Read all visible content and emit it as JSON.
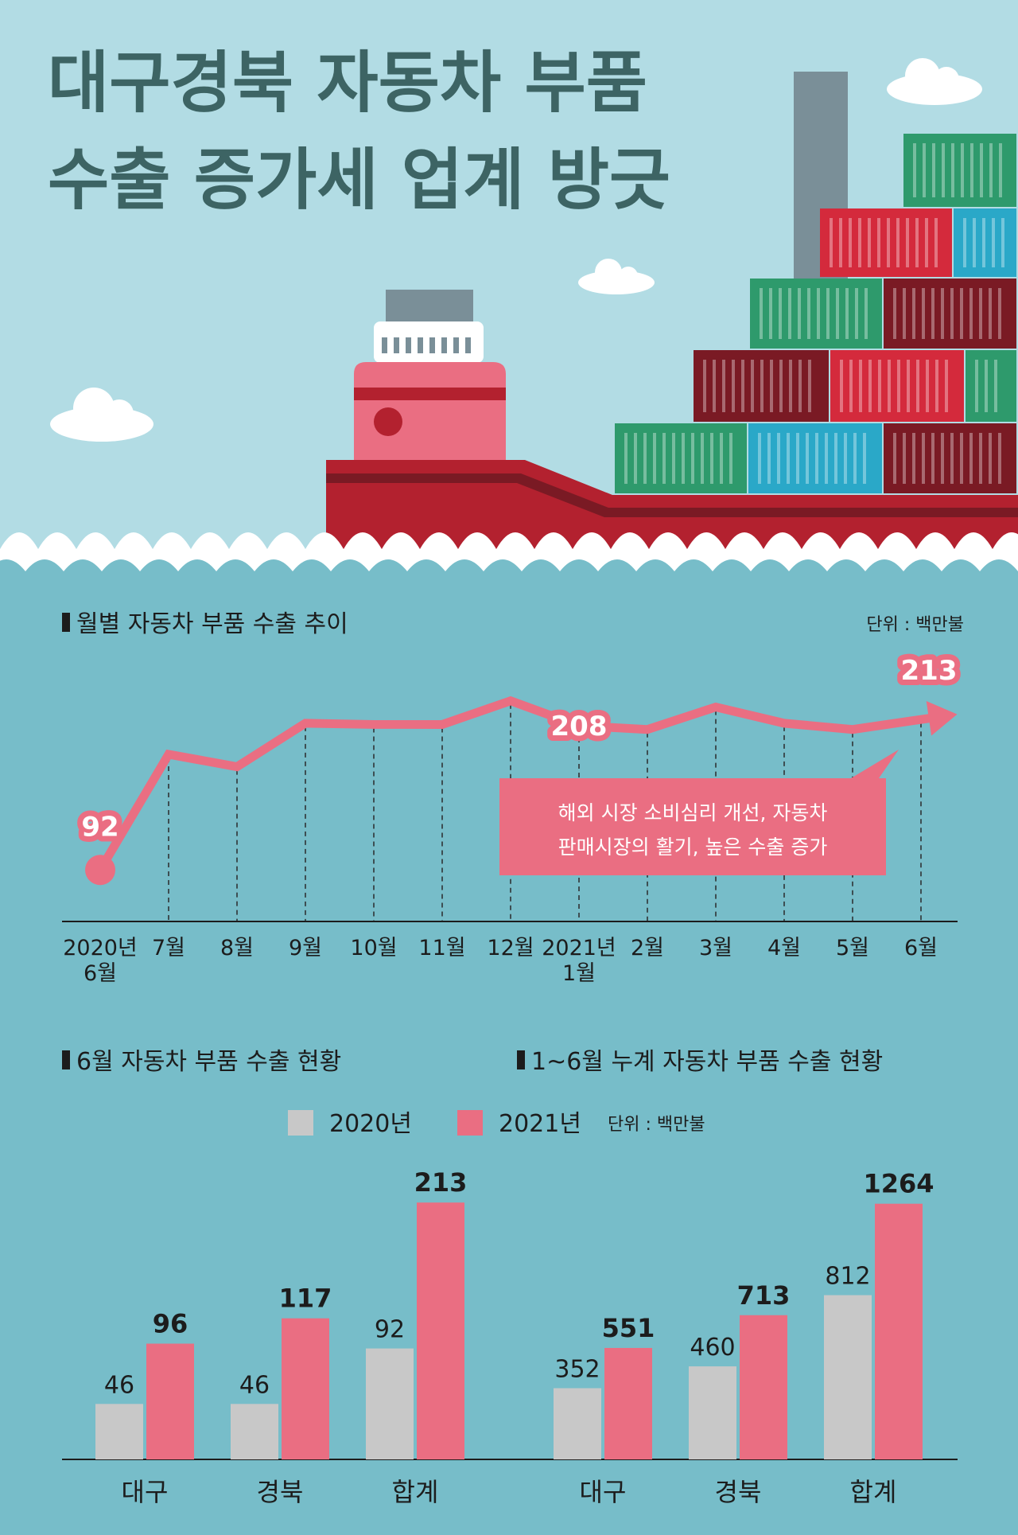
{
  "header": {
    "title_line1": "대구경북 자동차 부품",
    "title_line2": "수출 증가세 업계 방긋"
  },
  "colors": {
    "sky": "#b2dce4",
    "sea": "#77bdc9",
    "title": "#3d6464",
    "pink": "#ea6e82",
    "gray": "#c8c8c8",
    "text": "#1c1c1c",
    "hull": "#b3212f",
    "container_green": "#2e9a6c",
    "container_red": "#d42a3c",
    "container_blue": "#2aa8c8",
    "container_dark": "#7a1a24"
  },
  "chart_data": [
    {
      "type": "line",
      "title": "월별 자동차 부품 수출 추이",
      "unit_label": "단위 : 백만불",
      "x": [
        [
          "2020년",
          "6월"
        ],
        [
          "7월"
        ],
        [
          "8월"
        ],
        [
          "9월"
        ],
        [
          "10월"
        ],
        [
          "11월"
        ],
        [
          "12월"
        ],
        [
          "2021년",
          "1월"
        ],
        [
          "2월"
        ],
        [
          "3월"
        ],
        [
          "4월"
        ],
        [
          "5월"
        ],
        [
          "6월"
        ]
      ],
      "series": [
        {
          "values": [
            92,
            185,
            175,
            210,
            209,
            209,
            228,
            208,
            205,
            223,
            210,
            205,
            213
          ]
        }
      ],
      "labeled_points": [
        {
          "index": 0,
          "label": "92"
        },
        {
          "index": 7,
          "label": "208"
        },
        {
          "index": 12,
          "label": "213"
        }
      ],
      "annotation": [
        "해외 시장 소비심리 개선, 자동차",
        "판매시장의 활기, 높은 수출 증가"
      ],
      "ylim": [
        80,
        240
      ],
      "grid": "vertical-dashed"
    },
    {
      "type": "bar",
      "title": "6월 자동차 부품 수출 현황",
      "categories": [
        "대구",
        "경북",
        "합계"
      ],
      "series": [
        {
          "name": "2020년",
          "values": [
            46,
            46,
            92
          ]
        },
        {
          "name": "2021년",
          "values": [
            96,
            117,
            213
          ]
        }
      ],
      "ylim": [
        0,
        300
      ]
    },
    {
      "type": "bar",
      "title": "1~6월 누계 자동차 부품 수출 현황",
      "categories": [
        "대구",
        "경북",
        "합계"
      ],
      "series": [
        {
          "name": "2020년",
          "values": [
            352,
            460,
            812
          ]
        },
        {
          "name": "2021년",
          "values": [
            551,
            713,
            1264
          ]
        }
      ],
      "ylim": [
        0,
        1500
      ]
    }
  ],
  "legend": {
    "items": [
      "2020년",
      "2021년"
    ],
    "unit_label": "단위 : 백만불"
  }
}
